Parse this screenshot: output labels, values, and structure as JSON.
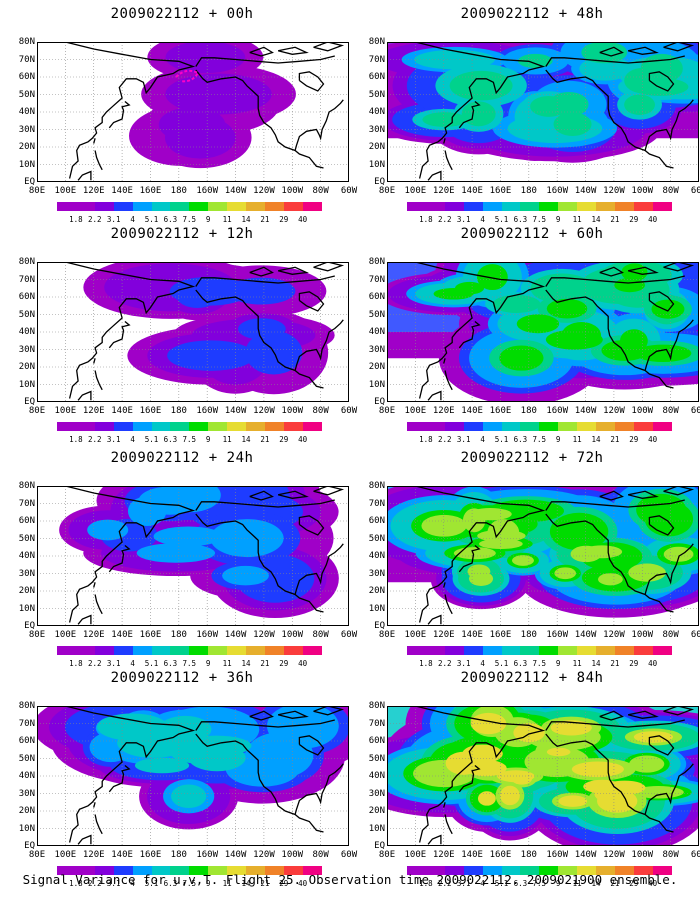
{
  "footer": "Signal Variance for u,v,T. Flight 25. Observation time 2009022112. 2009021900 ensemble.",
  "panels": [
    {
      "title": "2009022112 + 00h",
      "level": 0
    },
    {
      "title": "2009022112 + 48h",
      "level": 4
    },
    {
      "title": "2009022112 + 12h",
      "level": 1
    },
    {
      "title": "2009022112 + 60h",
      "level": 5
    },
    {
      "title": "2009022112 + 24h",
      "level": 2
    },
    {
      "title": "2009022112 + 72h",
      "level": 6
    },
    {
      "title": "2009022112 + 36h",
      "level": 3
    },
    {
      "title": "2009022112 + 84h",
      "level": 7
    }
  ],
  "lat_labels": [
    "80N",
    "70N",
    "60N",
    "50N",
    "40N",
    "30N",
    "20N",
    "10N",
    "EQ"
  ],
  "lon_labels": [
    "80E",
    "100E",
    "120E",
    "140E",
    "160E",
    "180",
    "160W",
    "140W",
    "120W",
    "100W",
    "80W",
    "60W"
  ],
  "colorbar": {
    "labels": [
      "1.8",
      "2.2",
      "3.1",
      "4",
      "5.1",
      "6.3",
      "7.5",
      "9",
      "11",
      "14",
      "21",
      "29",
      "40"
    ],
    "colors": [
      "#a000c8",
      "#8200dc",
      "#1e3cff",
      "#00a0ff",
      "#00c8c8",
      "#00d28c",
      "#00dc00",
      "#a0e632",
      "#e6dc32",
      "#e6af2d",
      "#f08228",
      "#fa3c3c",
      "#f00082"
    ]
  },
  "fill_color": "#a000c8"
}
